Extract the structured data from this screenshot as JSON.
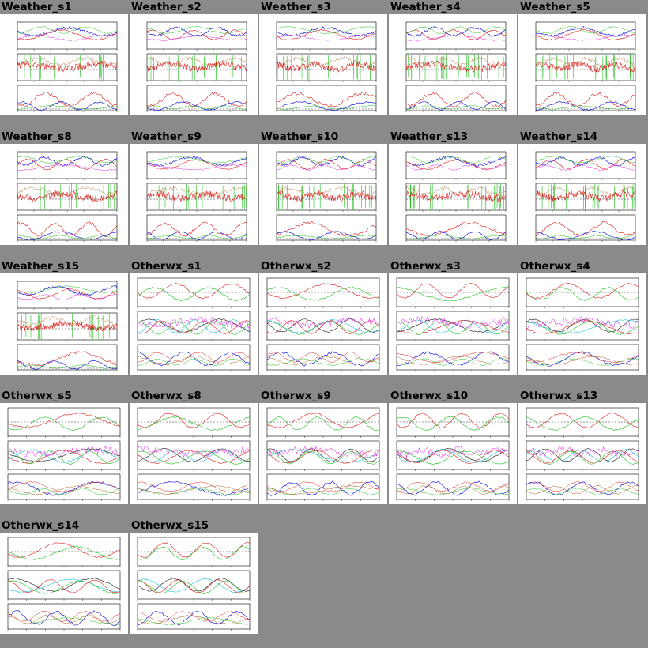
{
  "gallery": {
    "columns": 5,
    "items": [
      {
        "title": "Weather_s1",
        "type": "weather"
      },
      {
        "title": "Weather_s2",
        "type": "weather"
      },
      {
        "title": "Weather_s3",
        "type": "weather"
      },
      {
        "title": "Weather_s4",
        "type": "weather"
      },
      {
        "title": "Weather_s5",
        "type": "weather"
      },
      {
        "title": "Weather_s8",
        "type": "weather"
      },
      {
        "title": "Weather_s9",
        "type": "weather"
      },
      {
        "title": "Weather_s10",
        "type": "weather"
      },
      {
        "title": "Weather_s13",
        "type": "weather"
      },
      {
        "title": "Weather_s14",
        "type": "weather"
      },
      {
        "title": "Weather_s15",
        "type": "weather"
      },
      {
        "title": "Otherwx_s1",
        "type": "otherwx"
      },
      {
        "title": "Otherwx_s2",
        "type": "otherwx"
      },
      {
        "title": "Otherwx_s3",
        "type": "otherwx"
      },
      {
        "title": "Otherwx_s4",
        "type": "otherwx"
      },
      {
        "title": "Otherwx_s5",
        "type": "otherwx"
      },
      {
        "title": "Otherwx_s8",
        "type": "otherwx"
      },
      {
        "title": "Otherwx_s9",
        "type": "otherwx"
      },
      {
        "title": "Otherwx_s10",
        "type": "otherwx"
      },
      {
        "title": "Otherwx_s13",
        "type": "otherwx"
      },
      {
        "title": "Otherwx_s14",
        "type": "otherwx"
      },
      {
        "title": "Otherwx_s15",
        "type": "otherwx"
      }
    ]
  },
  "colors": {
    "background": "#8a8a8a",
    "thumbnail": "#ffffff",
    "trace_red": "#e02020",
    "trace_green": "#20c020",
    "trace_blue": "#2020e0",
    "trace_cyan": "#20c0e0",
    "trace_magenta": "#e020e0",
    "trace_brown": "#a06020"
  }
}
